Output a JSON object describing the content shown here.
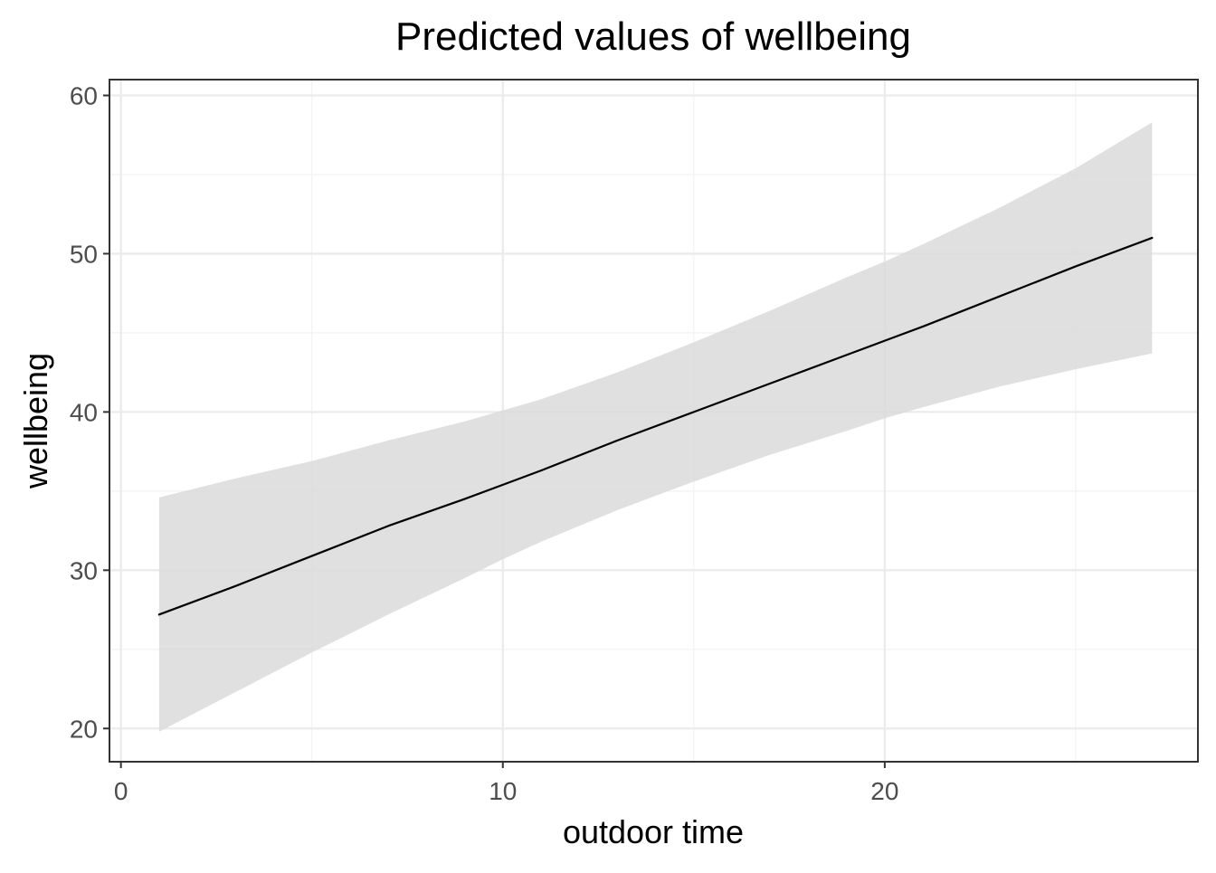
{
  "chart_data": {
    "type": "line",
    "title": "Predicted values of wellbeing",
    "xlabel": "outdoor time",
    "ylabel": "wellbeing",
    "xlim": [
      -0.3,
      28.2
    ],
    "ylim": [
      17.9,
      61.0
    ],
    "x_ticks": [
      0,
      10,
      20
    ],
    "x_minor_ticks": [
      5,
      15,
      25
    ],
    "y_ticks": [
      20,
      30,
      40,
      50,
      60
    ],
    "y_minor_ticks": [
      25,
      35,
      45,
      55
    ],
    "grid": true,
    "x_tick_labels": [
      "0",
      "10",
      "20"
    ],
    "y_tick_labels": [
      "20",
      "30",
      "40",
      "50",
      "60"
    ],
    "series": [
      {
        "x": [
          1,
          3,
          5,
          7,
          9,
          10,
          11,
          13,
          15,
          17,
          19,
          20,
          21,
          23,
          25,
          27
        ],
        "y": [
          27.2,
          29.0,
          30.9,
          32.8,
          34.5,
          35.4,
          36.3,
          38.2,
          40.0,
          41.8,
          43.6,
          44.5,
          45.4,
          47.3,
          49.2,
          51.0
        ],
        "lower": [
          19.8,
          22.3,
          24.8,
          27.2,
          29.5,
          30.7,
          31.8,
          33.8,
          35.6,
          37.3,
          38.8,
          39.6,
          40.3,
          41.6,
          42.7,
          43.7
        ],
        "upper": [
          34.6,
          35.8,
          36.9,
          38.2,
          39.4,
          40.1,
          40.8,
          42.5,
          44.4,
          46.4,
          48.5,
          49.5,
          50.6,
          52.9,
          55.4,
          58.3
        ]
      }
    ],
    "colors": {
      "line": "#000000",
      "ribbon": "#d9d9d9",
      "panel_border": "#333333",
      "major_grid": "#ebebeb",
      "minor_grid": "#f2f2f2",
      "tick_label": "#4d4d4d",
      "axis_tick": "#333333"
    }
  }
}
